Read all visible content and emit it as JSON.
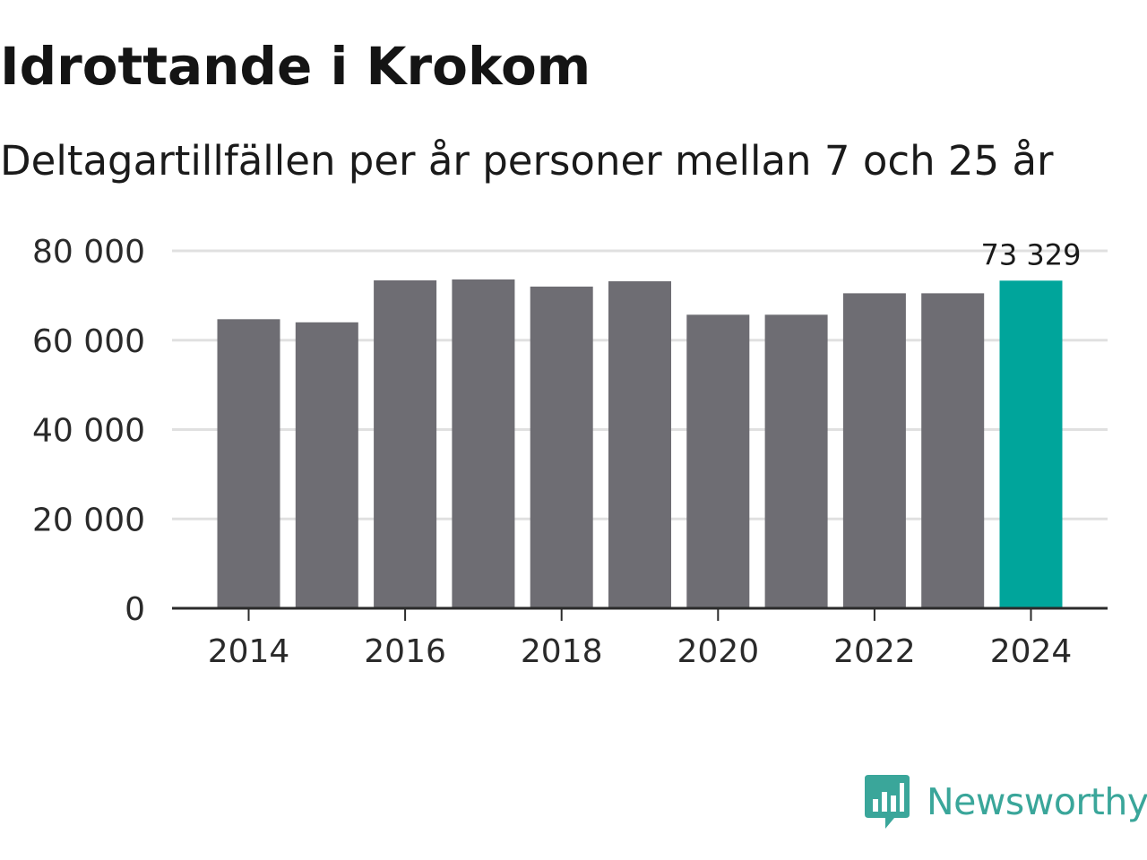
{
  "title": "Idrottande i Krokom",
  "subtitle": "Deltagartillfällen per år personer mellan 7 och 25 år",
  "chart_data": {
    "type": "bar",
    "categories": [
      "2014",
      "2015",
      "2016",
      "2017",
      "2018",
      "2019",
      "2020",
      "2021",
      "2022",
      "2023",
      "2024"
    ],
    "values": [
      64700,
      64000,
      73400,
      73600,
      72000,
      73200,
      65700,
      65700,
      70500,
      70500,
      73329
    ],
    "ylim": [
      0,
      80000
    ],
    "yticks": [
      0,
      20000,
      40000,
      60000,
      80000
    ],
    "ytick_labels": [
      "0",
      "20 000",
      "40 000",
      "60 000",
      "80 000"
    ],
    "xtick_labels": [
      "2014",
      "2016",
      "2018",
      "2020",
      "2022",
      "2024"
    ],
    "highlight_index": 10,
    "highlight_label": "73 329",
    "xlabel": "",
    "ylabel": "",
    "grid": true,
    "colors": {
      "bar": "#6e6d73",
      "highlight": "#00a59b",
      "grid": "#e0e0e0",
      "axis": "#2b2b2b"
    }
  },
  "brand": {
    "name": "Newsworthy",
    "icon": "newsworthy-logo-icon",
    "color": "#3aa69a"
  }
}
